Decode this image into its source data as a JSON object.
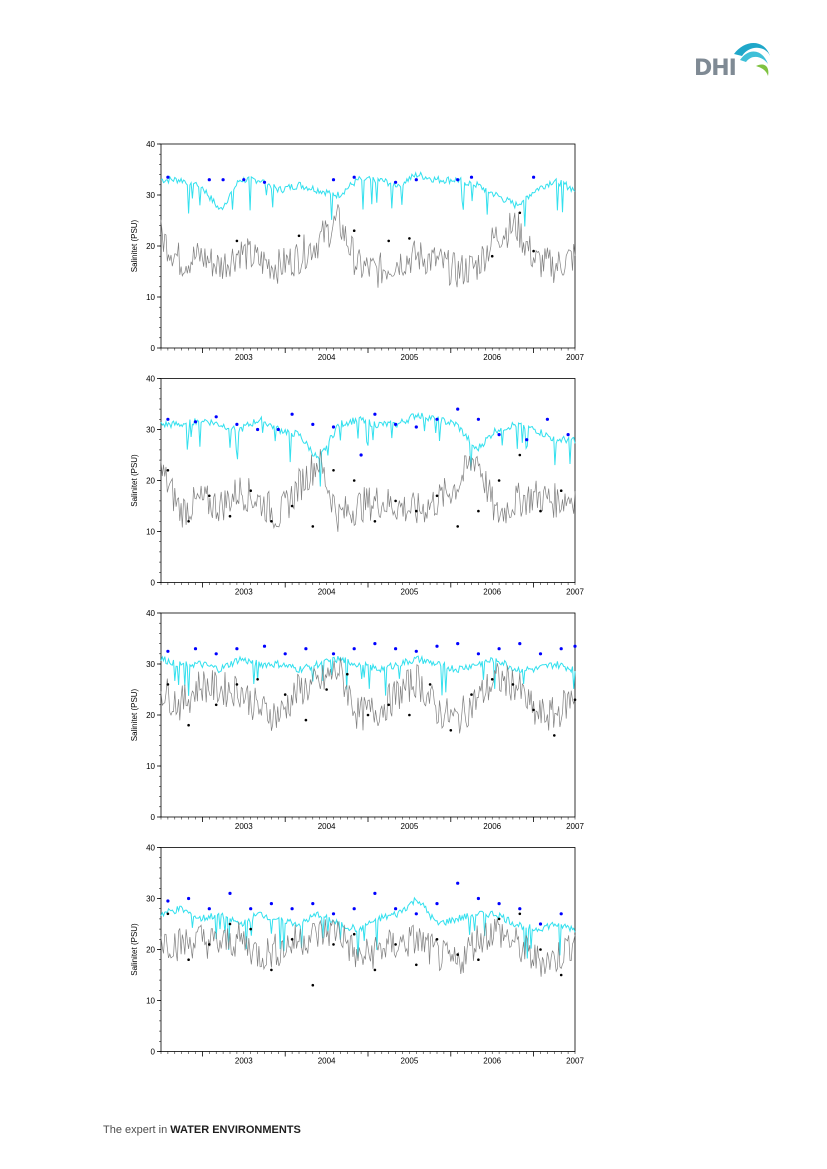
{
  "logo": {
    "text": "DHI",
    "icon": "dhi-wave-icon"
  },
  "footer": {
    "prefix": "The expert in ",
    "emphasis": "WATER ENVIRONMENTS"
  },
  "colors": {
    "measured_surface": "#0000ff",
    "measured_bottom": "#000000",
    "model_surface": "#33e0ee",
    "model_bottom": "#808080"
  },
  "chart_data": [
    {
      "type": "line",
      "ylabel": "Salinitet (PSU)",
      "ylim": [
        0,
        40
      ],
      "yticks": [
        "0",
        "10",
        "20",
        "30",
        "40"
      ],
      "xticks": [
        "2003",
        "2004",
        "2005",
        "2006",
        "2007"
      ],
      "x_range": [
        "2002-07",
        "2007-07"
      ],
      "series": [
        {
          "role": "model_surface",
          "values_by_quarter": [
            33,
            33,
            32,
            27,
            33,
            33,
            31,
            32,
            31,
            30,
            33,
            33,
            32,
            34,
            33,
            33,
            32,
            30,
            28,
            31,
            33,
            31
          ]
        },
        {
          "role": "model_bottom",
          "values_by_quarter": [
            22,
            17,
            18,
            16,
            19,
            17,
            16,
            18,
            21,
            25,
            16,
            15,
            17,
            18,
            17,
            15,
            16,
            22,
            24,
            17,
            16,
            18
          ]
        },
        {
          "role": "measured_surface",
          "points": [
            [
              "2002-08",
              33.5
            ],
            [
              "2003-02",
              33
            ],
            [
              "2003-04",
              33
            ],
            [
              "2003-07",
              33
            ],
            [
              "2003-10",
              32.5
            ],
            [
              "2004-08",
              33
            ],
            [
              "2004-11",
              33.5
            ],
            [
              "2005-05",
              32.5
            ],
            [
              "2005-08",
              33
            ],
            [
              "2006-02",
              33
            ],
            [
              "2006-04",
              33.5
            ],
            [
              "2007-01",
              33.5
            ]
          ]
        },
        {
          "role": "measured_bottom",
          "points": [
            [
              "2003-06",
              21
            ],
            [
              "2004-03",
              22
            ],
            [
              "2004-11",
              23
            ],
            [
              "2005-04",
              21
            ],
            [
              "2005-07",
              21.5
            ],
            [
              "2006-07",
              18
            ],
            [
              "2006-11",
              26.5
            ],
            [
              "2007-01",
              19
            ]
          ]
        }
      ]
    },
    {
      "type": "line",
      "ylabel": "Salinitet (PSU)",
      "ylim": [
        0,
        40
      ],
      "yticks": [
        "0",
        "10",
        "20",
        "30",
        "40"
      ],
      "xticks": [
        "2003",
        "2004",
        "2005",
        "2006",
        "2007"
      ],
      "x_range": [
        "2002-07",
        "2007-07"
      ],
      "series": [
        {
          "role": "model_surface",
          "values_by_quarter": [
            31,
            31,
            32,
            31,
            30,
            32,
            30,
            29,
            24,
            31,
            32,
            31,
            31,
            33,
            32,
            31,
            26,
            30,
            31,
            30,
            28,
            28
          ]
        },
        {
          "role": "model_bottom",
          "values_by_quarter": [
            22,
            14,
            16,
            15,
            18,
            16,
            13,
            19,
            24,
            13,
            15,
            16,
            15,
            14,
            16,
            19,
            25,
            13,
            16,
            17,
            16,
            17
          ]
        },
        {
          "role": "measured_surface",
          "points": [
            [
              "2002-08",
              32
            ],
            [
              "2002-12",
              31.5
            ],
            [
              "2003-03",
              32.5
            ],
            [
              "2003-06",
              31
            ],
            [
              "2003-09",
              30
            ],
            [
              "2003-12",
              30
            ],
            [
              "2004-02",
              33
            ],
            [
              "2004-05",
              31
            ],
            [
              "2004-08",
              30.5
            ],
            [
              "2004-12",
              25
            ],
            [
              "2005-02",
              33
            ],
            [
              "2005-05",
              31
            ],
            [
              "2005-08",
              30.5
            ],
            [
              "2005-11",
              32
            ],
            [
              "2006-02",
              34
            ],
            [
              "2006-05",
              32
            ],
            [
              "2006-08",
              29
            ],
            [
              "2006-12",
              28
            ],
            [
              "2007-03",
              32
            ],
            [
              "2007-06",
              29
            ]
          ]
        },
        {
          "role": "measured_bottom",
          "points": [
            [
              "2002-08",
              22
            ],
            [
              "2002-11",
              12
            ],
            [
              "2003-02",
              17
            ],
            [
              "2003-05",
              13
            ],
            [
              "2003-08",
              18
            ],
            [
              "2003-11",
              12
            ],
            [
              "2004-02",
              15
            ],
            [
              "2004-05",
              11
            ],
            [
              "2004-08",
              22
            ],
            [
              "2004-11",
              20
            ],
            [
              "2005-02",
              12
            ],
            [
              "2005-05",
              16
            ],
            [
              "2005-08",
              14
            ],
            [
              "2005-11",
              17
            ],
            [
              "2006-02",
              11
            ],
            [
              "2006-05",
              14
            ],
            [
              "2006-08",
              20
            ],
            [
              "2006-11",
              25
            ],
            [
              "2007-02",
              14
            ],
            [
              "2007-05",
              18
            ]
          ]
        }
      ]
    },
    {
      "type": "line",
      "ylabel": "Salinitet (PSU)",
      "ylim": [
        0,
        40
      ],
      "yticks": [
        "0",
        "10",
        "20",
        "30",
        "40"
      ],
      "xticks": [
        "2003",
        "2004",
        "2005",
        "2006",
        "2007"
      ],
      "x_range": [
        "2002-07",
        "2007-07"
      ],
      "series": [
        {
          "role": "model_surface",
          "values_by_quarter": [
            31,
            30,
            30,
            29,
            31,
            30,
            30,
            29,
            30,
            31,
            30,
            29,
            30,
            31,
            30,
            29,
            30,
            31,
            29,
            29,
            30,
            29
          ]
        },
        {
          "role": "model_bottom",
          "values_by_quarter": [
            25,
            22,
            26,
            25,
            25,
            21,
            20,
            25,
            26,
            29,
            20,
            21,
            24,
            27,
            21,
            19,
            23,
            27,
            26,
            20,
            20,
            24
          ]
        },
        {
          "role": "measured_surface",
          "points": [
            [
              "2002-08",
              32.5
            ],
            [
              "2002-12",
              33
            ],
            [
              "2003-03",
              32
            ],
            [
              "2003-06",
              33
            ],
            [
              "2003-10",
              33.5
            ],
            [
              "2004-01",
              32
            ],
            [
              "2004-04",
              33
            ],
            [
              "2004-08",
              32
            ],
            [
              "2004-11",
              33
            ],
            [
              "2005-02",
              34
            ],
            [
              "2005-05",
              33
            ],
            [
              "2005-08",
              32.5
            ],
            [
              "2005-11",
              33.5
            ],
            [
              "2006-02",
              34
            ],
            [
              "2006-05",
              32
            ],
            [
              "2006-08",
              33
            ],
            [
              "2006-11",
              34
            ],
            [
              "2007-02",
              32
            ],
            [
              "2007-05",
              33
            ],
            [
              "2007-07",
              33.5
            ]
          ]
        },
        {
          "role": "measured_bottom",
          "points": [
            [
              "2002-08",
              26
            ],
            [
              "2002-11",
              18
            ],
            [
              "2003-03",
              22
            ],
            [
              "2003-06",
              26
            ],
            [
              "2003-09",
              27
            ],
            [
              "2004-01",
              24
            ],
            [
              "2004-04",
              19
            ],
            [
              "2004-07",
              25
            ],
            [
              "2004-10",
              28
            ],
            [
              "2005-01",
              20
            ],
            [
              "2005-04",
              22
            ],
            [
              "2005-07",
              20
            ],
            [
              "2005-10",
              26
            ],
            [
              "2006-01",
              17
            ],
            [
              "2006-04",
              24
            ],
            [
              "2006-07",
              27
            ],
            [
              "2006-10",
              26
            ],
            [
              "2007-01",
              21
            ],
            [
              "2007-04",
              16
            ],
            [
              "2007-07",
              23
            ]
          ]
        }
      ]
    },
    {
      "type": "line",
      "ylabel": "Salinitet (PSU)",
      "ylim": [
        0,
        40
      ],
      "yticks": [
        "0",
        "10",
        "20",
        "30",
        "40"
      ],
      "xticks": [
        "2003",
        "2004",
        "2005",
        "2006",
        "2007"
      ],
      "x_range": [
        "2002-07",
        "2007-07"
      ],
      "series": [
        {
          "role": "model_surface",
          "values_by_quarter": [
            27,
            28,
            26,
            27,
            25,
            27,
            26,
            25,
            27,
            25,
            24,
            26,
            27,
            30,
            25,
            26,
            27,
            27,
            25,
            24,
            25,
            24
          ]
        },
        {
          "role": "model_bottom",
          "values_by_quarter": [
            22,
            21,
            22,
            21,
            22,
            19,
            20,
            22,
            23,
            24,
            18,
            20,
            21,
            22,
            19,
            17,
            22,
            24,
            21,
            18,
            18,
            22
          ]
        },
        {
          "role": "measured_surface",
          "points": [
            [
              "2002-08",
              29.5
            ],
            [
              "2002-11",
              30
            ],
            [
              "2003-02",
              28
            ],
            [
              "2003-05",
              31
            ],
            [
              "2003-08",
              28
            ],
            [
              "2003-11",
              29
            ],
            [
              "2004-02",
              28
            ],
            [
              "2004-05",
              29
            ],
            [
              "2004-08",
              27
            ],
            [
              "2004-11",
              28
            ],
            [
              "2005-02",
              31
            ],
            [
              "2005-05",
              28
            ],
            [
              "2005-08",
              27
            ],
            [
              "2005-11",
              29
            ],
            [
              "2006-02",
              33
            ],
            [
              "2006-05",
              30
            ],
            [
              "2006-08",
              29
            ],
            [
              "2006-11",
              28
            ],
            [
              "2007-02",
              25
            ],
            [
              "2007-05",
              27
            ]
          ]
        },
        {
          "role": "measured_bottom",
          "points": [
            [
              "2002-08",
              27
            ],
            [
              "2002-11",
              18
            ],
            [
              "2003-02",
              21
            ],
            [
              "2003-05",
              25
            ],
            [
              "2003-08",
              24
            ],
            [
              "2003-11",
              16
            ],
            [
              "2004-02",
              22
            ],
            [
              "2004-05",
              13
            ],
            [
              "2004-08",
              21
            ],
            [
              "2004-11",
              23
            ],
            [
              "2005-02",
              16
            ],
            [
              "2005-05",
              21
            ],
            [
              "2005-08",
              17
            ],
            [
              "2005-11",
              22
            ],
            [
              "2006-02",
              19
            ],
            [
              "2006-05",
              18
            ],
            [
              "2006-08",
              26
            ],
            [
              "2006-11",
              27
            ],
            [
              "2007-02",
              20
            ],
            [
              "2007-05",
              15
            ]
          ]
        }
      ]
    }
  ]
}
